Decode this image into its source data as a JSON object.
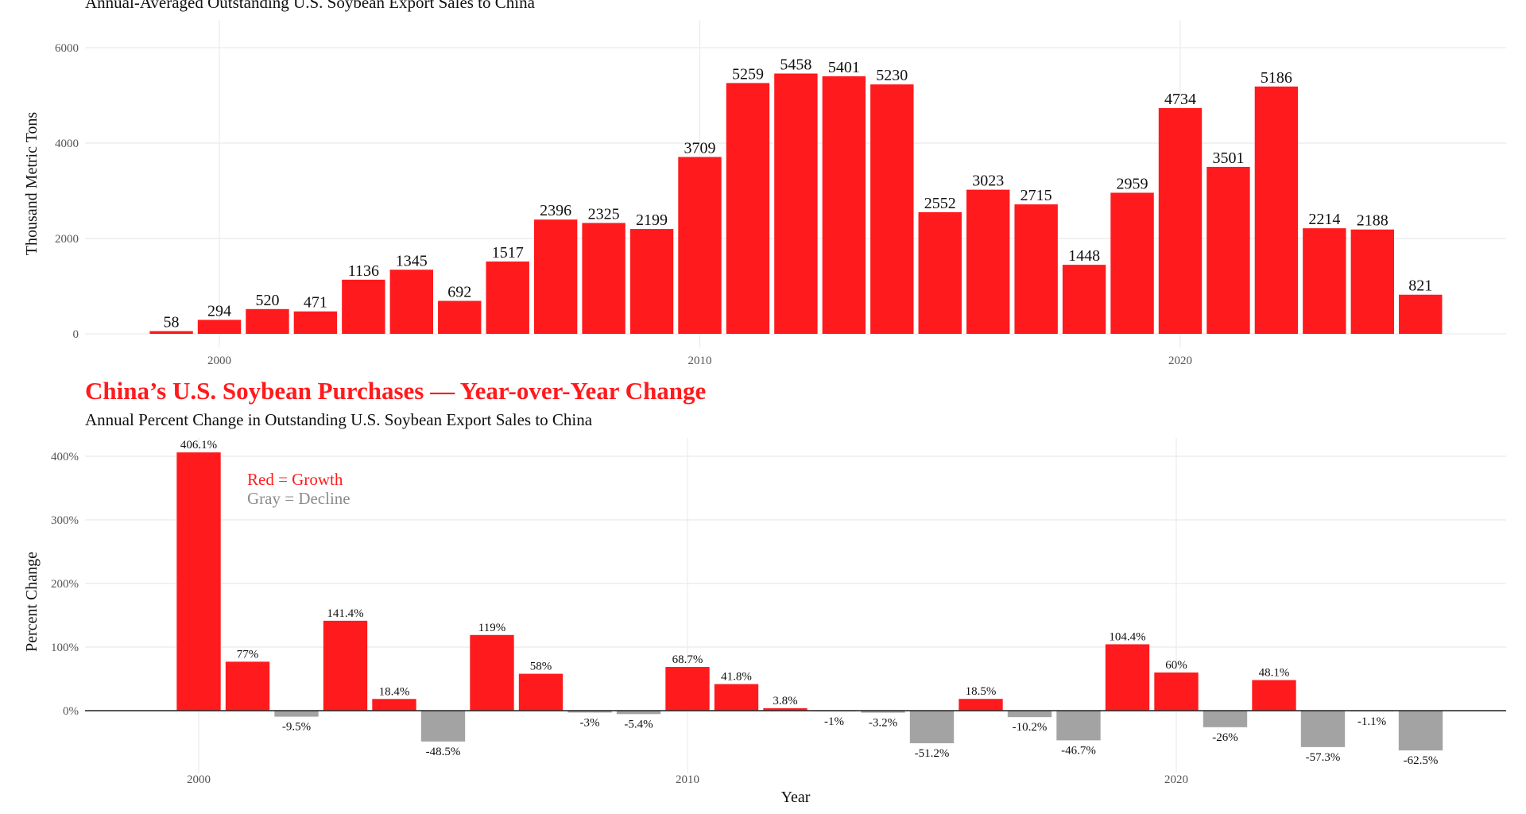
{
  "colors": {
    "growth": "#ff1a1d",
    "decline": "#a3a3a3",
    "title": "#ff1a1d"
  },
  "chart_data": [
    {
      "type": "bar",
      "title": "",
      "subtitle": "Annual-Averaged Outstanding U.S. Soybean Export Sales to China",
      "xlabel": "",
      "ylabel": "Thousand Metric Tons",
      "x_ticks": [
        "2000",
        "2010",
        "2020"
      ],
      "y_ticks": [
        "0",
        "2000",
        "4000",
        "6000"
      ],
      "ylim": [
        0,
        6000
      ],
      "grid": true,
      "x": [
        1999,
        2000,
        2001,
        2002,
        2003,
        2004,
        2005,
        2006,
        2007,
        2008,
        2009,
        2010,
        2011,
        2012,
        2013,
        2014,
        2015,
        2016,
        2017,
        2018,
        2019,
        2020,
        2021,
        2022,
        2023,
        2024,
        2025
      ],
      "values": [
        58,
        294,
        520,
        471,
        1136,
        1345,
        692,
        1517,
        2396,
        2325,
        2199,
        3709,
        5259,
        5458,
        5401,
        5230,
        2552,
        3023,
        2715,
        1448,
        2959,
        4734,
        3501,
        5186,
        2214,
        2188,
        821
      ]
    },
    {
      "type": "bar",
      "title": "China’s U.S. Soybean Purchases — Year-over-Year Change",
      "subtitle": "Annual Percent Change in Outstanding U.S. Soybean Export Sales to China",
      "xlabel": "Year",
      "ylabel": "Percent Change",
      "x_ticks": [
        "2000",
        "2010",
        "2020"
      ],
      "y_ticks": [
        "0%",
        "100%",
        "200%",
        "300%",
        "400%"
      ],
      "ylim": [
        -70,
        410
      ],
      "grid": true,
      "annotations": [
        "Red = Growth",
        "Gray = Decline"
      ],
      "x": [
        2000,
        2001,
        2002,
        2003,
        2004,
        2005,
        2006,
        2007,
        2008,
        2009,
        2010,
        2011,
        2012,
        2013,
        2014,
        2015,
        2016,
        2017,
        2018,
        2019,
        2020,
        2021,
        2022,
        2023,
        2024,
        2025
      ],
      "values": [
        406.1,
        77,
        -9.5,
        141.4,
        18.4,
        -48.5,
        119,
        58,
        -3,
        -5.4,
        68.7,
        41.8,
        3.8,
        -1,
        -3.2,
        -51.2,
        18.5,
        -10.2,
        -46.7,
        104.4,
        60,
        -26,
        48.1,
        -57.3,
        -1.1,
        -62.5
      ]
    }
  ]
}
